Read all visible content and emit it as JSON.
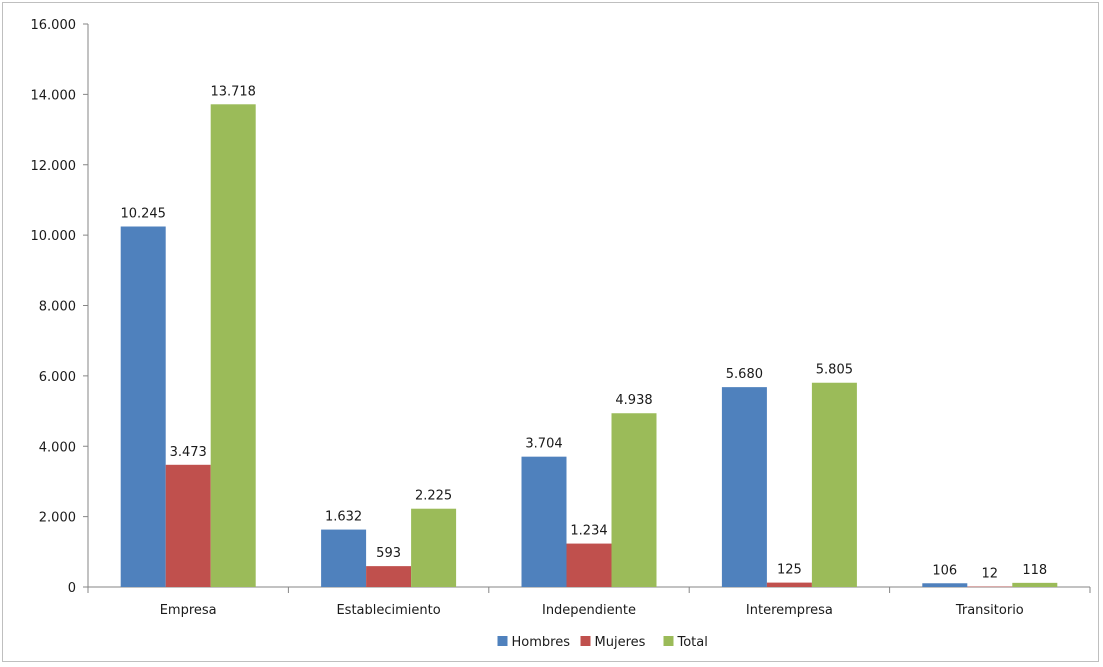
{
  "chart_data": {
    "type": "bar",
    "categories": [
      "Empresa",
      "Establecimiento",
      "Independiente",
      "Interempresa",
      "Transitorio"
    ],
    "series": [
      {
        "name": "Hombres",
        "values": [
          10245,
          1632,
          3704,
          5680,
          106
        ],
        "labels": [
          "10.245",
          "1.632",
          "3.704",
          "5.680",
          "106"
        ],
        "color": "#4f81bd"
      },
      {
        "name": "Mujeres",
        "values": [
          3473,
          593,
          1234,
          125,
          12
        ],
        "labels": [
          "3.473",
          "593",
          "1.234",
          "125",
          "12"
        ],
        "color": "#c0504d"
      },
      {
        "name": "Total",
        "values": [
          13718,
          2225,
          4938,
          5805,
          118
        ],
        "labels": [
          "13.718",
          "2.225",
          "4.938",
          "5.805",
          "118"
        ],
        "color": "#9bbb59"
      }
    ],
    "ylim": [
      0,
      16000
    ],
    "yticks": [
      0,
      2000,
      4000,
      6000,
      8000,
      10000,
      12000,
      14000,
      16000
    ],
    "ytick_labels": [
      "0",
      "2.000",
      "4.000",
      "6.000",
      "8.000",
      "10.000",
      "12.000",
      "14.000",
      "16.000"
    ],
    "title": "",
    "xlabel": "",
    "ylabel": "",
    "grid": false,
    "legend_position": "bottom"
  }
}
